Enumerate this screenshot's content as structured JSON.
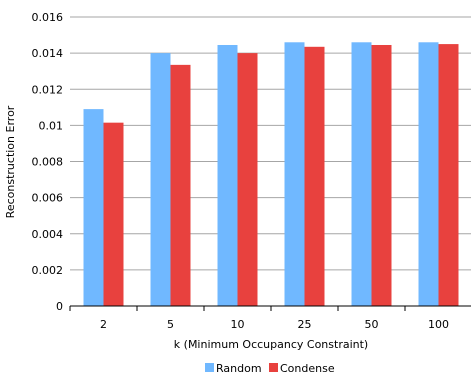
{
  "chart_data": {
    "type": "bar",
    "title": "",
    "xlabel": "k (Minimum Occupancy Constraint)",
    "ylabel": "Reconstruction Error",
    "categories": [
      "2",
      "5",
      "10",
      "25",
      "50",
      "100"
    ],
    "series": [
      {
        "name": "Random",
        "color": "#70B8FF",
        "values": [
          0.0109,
          0.014,
          0.01445,
          0.0146,
          0.0146,
          0.0146
        ]
      },
      {
        "name": "Condense",
        "color": "#E8413E",
        "values": [
          0.01015,
          0.01335,
          0.014,
          0.01435,
          0.01445,
          0.0145
        ]
      }
    ],
    "ylim": [
      0,
      0.016
    ],
    "yticks": [
      0,
      0.002,
      0.004,
      0.006,
      0.008,
      0.01,
      0.012,
      0.014,
      0.016
    ],
    "ytick_labels": [
      "0",
      "0.002",
      "0.004",
      "0.006",
      "0.008",
      "0.01",
      "0.012",
      "0.014",
      "0.016"
    ],
    "grid": true,
    "legend_position": "bottom"
  }
}
